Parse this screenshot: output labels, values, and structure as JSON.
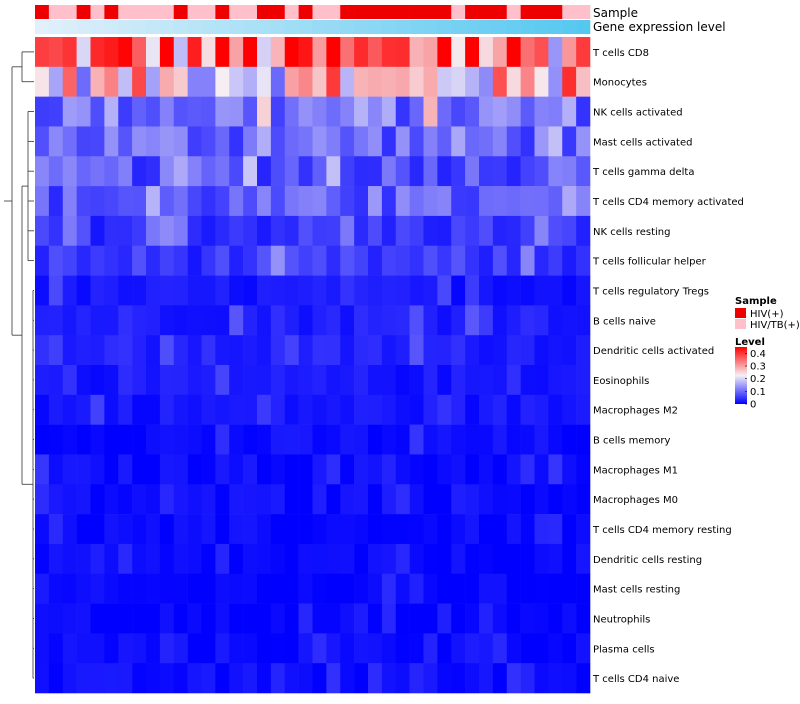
{
  "chart_data": {
    "type": "heatmap",
    "title": "",
    "annotation_tracks": {
      "sample_label": "Sample",
      "expression_label": "Gene expression level"
    },
    "row_labels": [
      "T cells CD8",
      "Monocytes",
      "NK cells activated",
      "Mast cells activated",
      "T cells gamma delta",
      "T cells CD4 memory activated",
      "NK cells resting",
      "T cells follicular helper",
      "T cells regulatory  Tregs",
      "B cells naive",
      "Dendritic cells activated",
      "Eosinophils",
      "Macrophages M2",
      "B cells memory",
      "Macrophages M1",
      "Macrophages M0",
      "T cells CD4 memory resting",
      "Dendritic cells resting",
      "Mast cells resting",
      "Neutrophils",
      "Plasma cells",
      "T cells CD4 naive"
    ],
    "n_columns": 40,
    "sample_groups": [
      0,
      1,
      1,
      0,
      1,
      0,
      1,
      1,
      1,
      1,
      0,
      1,
      1,
      0,
      1,
      1,
      0,
      0,
      1,
      0,
      1,
      1,
      0,
      0,
      0,
      0,
      0,
      0,
      0,
      0,
      1,
      0,
      0,
      0,
      1,
      0,
      0,
      0,
      1,
      1
    ],
    "row_mean_levels": [
      0.33,
      0.24,
      0.11,
      0.1,
      0.08,
      0.08,
      0.05,
      0.05,
      0.02,
      0.03,
      0.03,
      0.02,
      0.02,
      0.01,
      0.01,
      0.01,
      0.005,
      0.005,
      0.003,
      0.002,
      0.01,
      0.01
    ],
    "color_scale": {
      "min": 0,
      "max": 0.45,
      "low": "#0000ff",
      "mid": "#f5f0f5",
      "high": "#ff0000"
    },
    "legend": {
      "sample_title": "Sample",
      "groups": [
        {
          "label": "HIV(+)",
          "color": "#ee0000"
        },
        {
          "label": "HIV/TB(+)",
          "color": "#ffc0cb"
        }
      ],
      "level_title": "Level",
      "ticks": [
        "0.4",
        "0.3",
        "0.2",
        "0.1",
        "0"
      ],
      "tick_values": [
        0.4,
        0.3,
        0.2,
        0.1,
        0
      ],
      "placement": "right-middle"
    },
    "dendrogram": "row clustering, left side"
  }
}
